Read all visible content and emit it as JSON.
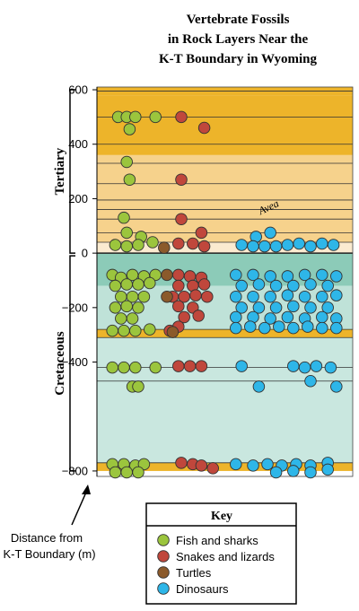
{
  "chart_data": {
    "type": "scatter",
    "title_lines": [
      "Vertebrate Fossils",
      "in Rock Layers Near the",
      "K-T Boundary in Wyoming"
    ],
    "ylabel_lines": [
      "Distance from",
      "K-T Boundary (m)"
    ],
    "ylim": [
      -820,
      610
    ],
    "yticks": [
      600,
      400,
      200,
      0,
      -200,
      -400,
      -800
    ],
    "eras": [
      {
        "name": "Tertiary",
        "from": 0,
        "to": 600
      },
      {
        "name": "Cretaceous",
        "from": -800,
        "to": 0
      }
    ],
    "annotation": {
      "text": "Avea",
      "x": 2.6,
      "y": 75
    },
    "layers": [
      {
        "from": 580,
        "to": 610,
        "color": "#EDB42A"
      },
      {
        "from": 360,
        "to": 580,
        "color": "#EDB42A"
      },
      {
        "from": 40,
        "to": 360,
        "color": "#F6D28C"
      },
      {
        "from": 0,
        "to": 40,
        "color": "#FBEBD0"
      },
      {
        "from": -120,
        "to": 0,
        "color": "#8CCBB8"
      },
      {
        "from": -280,
        "to": -120,
        "color": "#BFE2D8"
      },
      {
        "from": -310,
        "to": -280,
        "color": "#EDB42A"
      },
      {
        "from": -420,
        "to": -310,
        "color": "#C9E7DF"
      },
      {
        "from": -770,
        "to": -420,
        "color": "#C9E7DF"
      },
      {
        "from": -800,
        "to": -770,
        "color": "#EDB42A"
      }
    ],
    "layer_lines": [
      595,
      500,
      400,
      330,
      255,
      195,
      160,
      125,
      75,
      40,
      -280,
      -310,
      -420,
      -470,
      -770
    ],
    "legend": {
      "title": "Key",
      "items": [
        {
          "name": "Fish and sharks",
          "color": "#9BC53D"
        },
        {
          "name": "Snakes and lizards",
          "color": "#C0473C"
        },
        {
          "name": "Turtles",
          "color": "#8B5A2B"
        },
        {
          "name": "Dinosaurs",
          "color": "#2EB6E8"
        }
      ]
    },
    "series": [
      {
        "name": "Fish and sharks",
        "color": "#9BC53D",
        "points": [
          {
            "x": 0.15,
            "y": 500
          },
          {
            "x": 0.3,
            "y": 500
          },
          {
            "x": 0.45,
            "y": 500
          },
          {
            "x": 0.8,
            "y": 500
          },
          {
            "x": 0.35,
            "y": 455
          },
          {
            "x": 0.3,
            "y": 335
          },
          {
            "x": 0.35,
            "y": 270
          },
          {
            "x": 0.25,
            "y": 130
          },
          {
            "x": 0.3,
            "y": 75
          },
          {
            "x": 0.55,
            "y": 60
          },
          {
            "x": 0.1,
            "y": 30
          },
          {
            "x": 0.3,
            "y": 25
          },
          {
            "x": 0.5,
            "y": 30
          },
          {
            "x": 0.75,
            "y": 40
          },
          {
            "x": 0.05,
            "y": -80
          },
          {
            "x": 0.2,
            "y": -90
          },
          {
            "x": 0.4,
            "y": -80
          },
          {
            "x": 0.6,
            "y": -85
          },
          {
            "x": 0.8,
            "y": -80
          },
          {
            "x": 0.1,
            "y": -120
          },
          {
            "x": 0.3,
            "y": -115
          },
          {
            "x": 0.5,
            "y": -115
          },
          {
            "x": 0.7,
            "y": -110
          },
          {
            "x": 0.2,
            "y": -160
          },
          {
            "x": 0.4,
            "y": -160
          },
          {
            "x": 0.6,
            "y": -160
          },
          {
            "x": 0.1,
            "y": -200
          },
          {
            "x": 0.3,
            "y": -195
          },
          {
            "x": 0.5,
            "y": -200
          },
          {
            "x": 0.2,
            "y": -240
          },
          {
            "x": 0.4,
            "y": -240
          },
          {
            "x": 0.05,
            "y": -285
          },
          {
            "x": 0.25,
            "y": -285
          },
          {
            "x": 0.45,
            "y": -285
          },
          {
            "x": 0.7,
            "y": -280
          },
          {
            "x": 0.05,
            "y": -420
          },
          {
            "x": 0.25,
            "y": -420
          },
          {
            "x": 0.45,
            "y": -420
          },
          {
            "x": 0.8,
            "y": -420
          },
          {
            "x": 0.4,
            "y": -490
          },
          {
            "x": 0.5,
            "y": -490
          },
          {
            "x": 0.05,
            "y": -775
          },
          {
            "x": 0.25,
            "y": -775
          },
          {
            "x": 0.45,
            "y": -780
          },
          {
            "x": 0.6,
            "y": -775
          },
          {
            "x": 0.1,
            "y": -805
          },
          {
            "x": 0.3,
            "y": -805
          },
          {
            "x": 0.5,
            "y": -805
          }
        ]
      },
      {
        "name": "Snakes and lizards",
        "color": "#C0473C",
        "points": [
          {
            "x": 1.25,
            "y": 500
          },
          {
            "x": 1.65,
            "y": 460
          },
          {
            "x": 1.25,
            "y": 270
          },
          {
            "x": 1.25,
            "y": 125
          },
          {
            "x": 1.6,
            "y": 75
          },
          {
            "x": 1.2,
            "y": 35
          },
          {
            "x": 1.45,
            "y": 35
          },
          {
            "x": 1.65,
            "y": 25
          },
          {
            "x": 1.2,
            "y": -80
          },
          {
            "x": 1.4,
            "y": -85
          },
          {
            "x": 1.6,
            "y": -90
          },
          {
            "x": 1.2,
            "y": -120
          },
          {
            "x": 1.45,
            "y": -120
          },
          {
            "x": 1.65,
            "y": -115
          },
          {
            "x": 1.1,
            "y": -160
          },
          {
            "x": 1.3,
            "y": -160
          },
          {
            "x": 1.5,
            "y": -155
          },
          {
            "x": 1.7,
            "y": -160
          },
          {
            "x": 1.2,
            "y": -195
          },
          {
            "x": 1.45,
            "y": -200
          },
          {
            "x": 1.3,
            "y": -235
          },
          {
            "x": 1.55,
            "y": -230
          },
          {
            "x": 1.2,
            "y": -270
          },
          {
            "x": 1.05,
            "y": -285
          },
          {
            "x": 1.2,
            "y": -415
          },
          {
            "x": 1.4,
            "y": -415
          },
          {
            "x": 1.6,
            "y": -415
          },
          {
            "x": 1.25,
            "y": -770
          },
          {
            "x": 1.45,
            "y": -775
          },
          {
            "x": 1.6,
            "y": -780
          },
          {
            "x": 1.8,
            "y": -790
          }
        ]
      },
      {
        "name": "Turtles",
        "color": "#8B5A2B",
        "points": [
          {
            "x": 0.95,
            "y": 20
          },
          {
            "x": 1.0,
            "y": -80
          },
          {
            "x": 1.0,
            "y": -160
          },
          {
            "x": 1.1,
            "y": -290
          }
        ]
      },
      {
        "name": "Dinosaurs",
        "color": "#2EB6E8",
        "points": [
          {
            "x": 2.55,
            "y": 60
          },
          {
            "x": 2.8,
            "y": 75
          },
          {
            "x": 2.3,
            "y": 30
          },
          {
            "x": 2.5,
            "y": 25
          },
          {
            "x": 2.7,
            "y": 25
          },
          {
            "x": 2.9,
            "y": 25
          },
          {
            "x": 3.1,
            "y": 30
          },
          {
            "x": 3.3,
            "y": 35
          },
          {
            "x": 3.5,
            "y": 25
          },
          {
            "x": 3.7,
            "y": 35
          },
          {
            "x": 3.9,
            "y": 30
          },
          {
            "x": 2.2,
            "y": -80
          },
          {
            "x": 2.5,
            "y": -80
          },
          {
            "x": 2.8,
            "y": -85
          },
          {
            "x": 3.1,
            "y": -85
          },
          {
            "x": 3.4,
            "y": -80
          },
          {
            "x": 3.7,
            "y": -80
          },
          {
            "x": 3.95,
            "y": -85
          },
          {
            "x": 2.3,
            "y": -120
          },
          {
            "x": 2.6,
            "y": -115
          },
          {
            "x": 2.9,
            "y": -120
          },
          {
            "x": 3.2,
            "y": -120
          },
          {
            "x": 3.5,
            "y": -115
          },
          {
            "x": 3.8,
            "y": -120
          },
          {
            "x": 2.2,
            "y": -160
          },
          {
            "x": 2.5,
            "y": -160
          },
          {
            "x": 2.8,
            "y": -160
          },
          {
            "x": 3.1,
            "y": -155
          },
          {
            "x": 3.4,
            "y": -160
          },
          {
            "x": 3.7,
            "y": -160
          },
          {
            "x": 3.95,
            "y": -155
          },
          {
            "x": 2.3,
            "y": -200
          },
          {
            "x": 2.6,
            "y": -200
          },
          {
            "x": 2.9,
            "y": -200
          },
          {
            "x": 3.2,
            "y": -195
          },
          {
            "x": 3.5,
            "y": -200
          },
          {
            "x": 3.8,
            "y": -200
          },
          {
            "x": 2.2,
            "y": -235
          },
          {
            "x": 2.5,
            "y": -235
          },
          {
            "x": 2.8,
            "y": -240
          },
          {
            "x": 3.1,
            "y": -235
          },
          {
            "x": 3.4,
            "y": -240
          },
          {
            "x": 3.7,
            "y": -235
          },
          {
            "x": 3.95,
            "y": -240
          },
          {
            "x": 2.2,
            "y": -275
          },
          {
            "x": 2.45,
            "y": -270
          },
          {
            "x": 2.7,
            "y": -275
          },
          {
            "x": 2.95,
            "y": -270
          },
          {
            "x": 3.2,
            "y": -275
          },
          {
            "x": 3.45,
            "y": -270
          },
          {
            "x": 3.7,
            "y": -275
          },
          {
            "x": 3.95,
            "y": -275
          },
          {
            "x": 2.3,
            "y": -415
          },
          {
            "x": 3.2,
            "y": -415
          },
          {
            "x": 3.4,
            "y": -420
          },
          {
            "x": 3.6,
            "y": -415
          },
          {
            "x": 3.85,
            "y": -420
          },
          {
            "x": 2.6,
            "y": -490
          },
          {
            "x": 3.5,
            "y": -470
          },
          {
            "x": 3.95,
            "y": -490
          },
          {
            "x": 2.2,
            "y": -775
          },
          {
            "x": 2.5,
            "y": -780
          },
          {
            "x": 2.75,
            "y": -775
          },
          {
            "x": 3.0,
            "y": -780
          },
          {
            "x": 3.25,
            "y": -775
          },
          {
            "x": 3.5,
            "y": -780
          },
          {
            "x": 3.8,
            "y": -770
          },
          {
            "x": 2.9,
            "y": -805
          },
          {
            "x": 3.2,
            "y": -800
          },
          {
            "x": 3.5,
            "y": -805
          },
          {
            "x": 3.8,
            "y": -795
          }
        ]
      }
    ]
  }
}
